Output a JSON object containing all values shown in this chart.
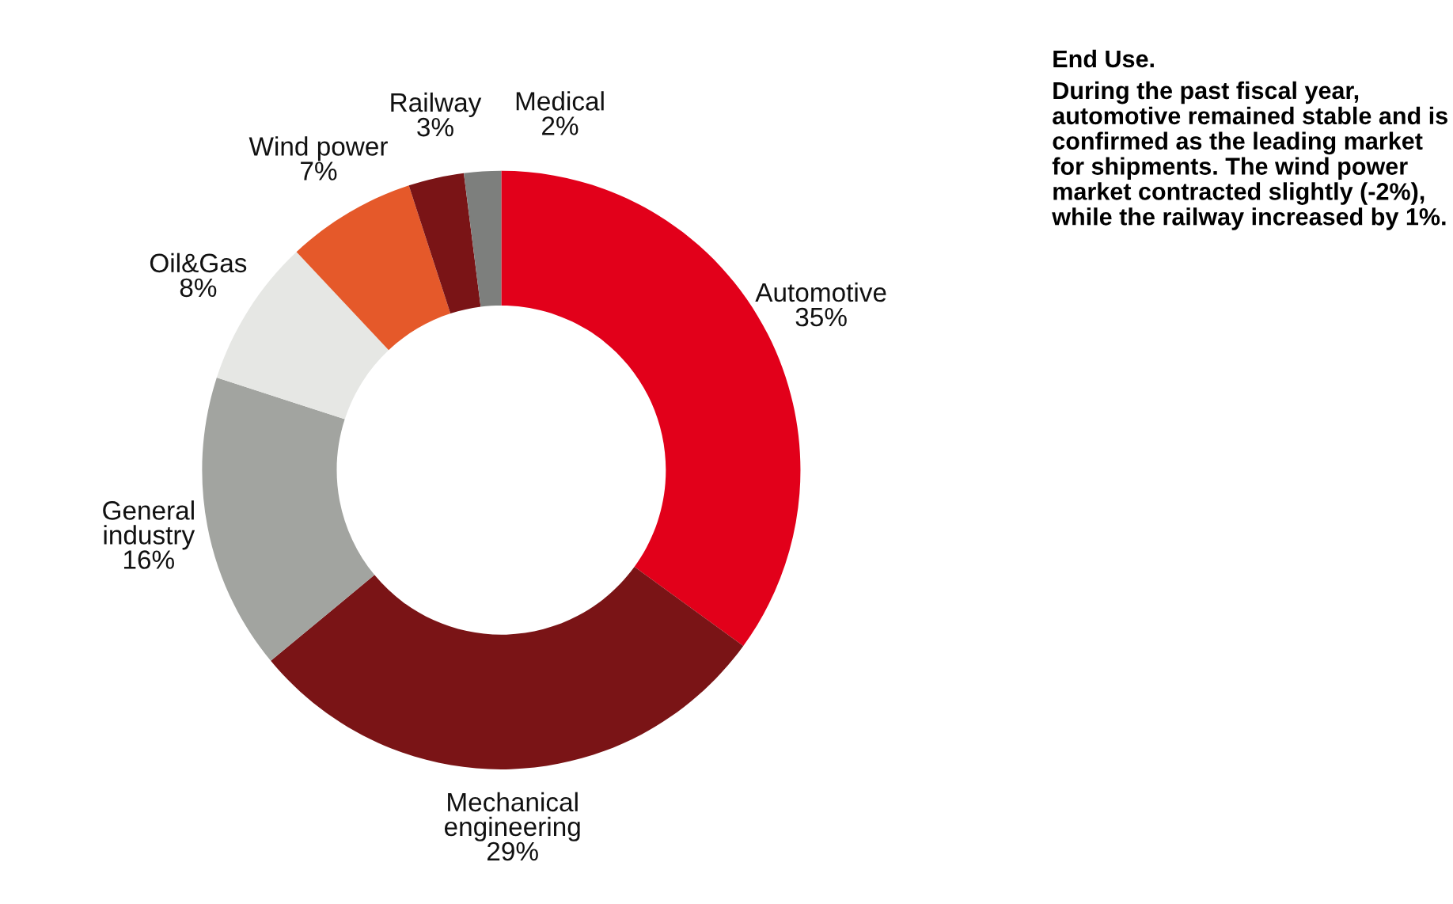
{
  "chart_data": {
    "type": "donut",
    "title": "End Use.",
    "annotations": [
      "During the past fiscal year, automotive remained stable and is confirmed as the leading market for shipments. The wind power market contracted slightly (-2%), while the railway increased by 1%."
    ],
    "categories": [
      "Automotive",
      "Mechanical engineering",
      "General industry",
      "Oil&Gas",
      "Wind power",
      "Railway",
      "Medical"
    ],
    "values": [
      35,
      29,
      16,
      8,
      7,
      3,
      2
    ],
    "value_labels": [
      "35%",
      "29%",
      "16%",
      "8%",
      "7%",
      "3%",
      "2%"
    ],
    "colors": [
      "#e2001a",
      "#7a1416",
      "#a2a4a0",
      "#e6e7e4",
      "#e5592a",
      "#7a1416",
      "#7d7f7d"
    ]
  }
}
